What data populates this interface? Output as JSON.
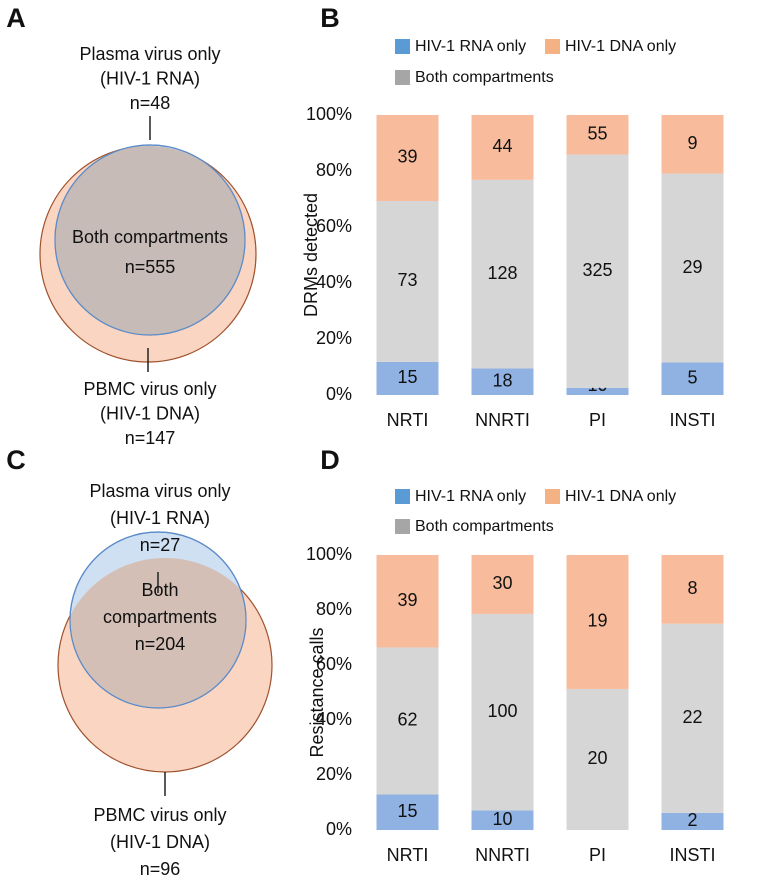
{
  "chart_data": [
    {
      "type": "venn",
      "panel": "A",
      "regions": [
        {
          "label": [
            "Plasma virus only",
            "(HIV-1 RNA)"
          ],
          "value": 48,
          "value_label": "n=48",
          "color": "#cfe0f3"
        },
        {
          "label": [
            "Both compartments"
          ],
          "value": 555,
          "value_label": "n=555",
          "color": "#c6bbb6"
        },
        {
          "label": [
            "PBMC virus only",
            "(HIV-1 DNA)"
          ],
          "value": 147,
          "value_label": "n=147",
          "color": "#f9d5c2"
        }
      ]
    },
    {
      "type": "bar",
      "panel": "B",
      "stacking": "percent",
      "ylabel": "DRMs detected",
      "categories": [
        "NRTI",
        "NNRTI",
        "PI",
        "INSTI"
      ],
      "series": [
        {
          "name": "HIV-1 RNA only",
          "color": "#8fb2e2",
          "legend_color": "#5b9bd5",
          "values": [
            15,
            18,
            10,
            5
          ]
        },
        {
          "name": "Both compartments",
          "color": "#d6d6d6",
          "legend_color": "#a6a6a6",
          "values": [
            73,
            128,
            325,
            29
          ]
        },
        {
          "name": "HIV-1 DNA only",
          "color": "#f8bc9c",
          "legend_color": "#f4b183",
          "values": [
            39,
            44,
            55,
            9
          ]
        }
      ],
      "ylim": [
        0,
        100
      ],
      "yticks": [
        {
          "value": 0,
          "label": "0%"
        },
        {
          "value": 20,
          "label": "20%"
        },
        {
          "value": 40,
          "label": "40%"
        },
        {
          "value": 60,
          "label": "60%"
        },
        {
          "value": 80,
          "label": "80%"
        },
        {
          "value": 100,
          "label": "100%"
        }
      ],
      "grid": false
    },
    {
      "type": "venn",
      "panel": "C",
      "regions": [
        {
          "label": [
            "Plasma virus only",
            "(HIV-1 RNA)"
          ],
          "value": 27,
          "value_label": "n=27",
          "color": "#cfe0f3"
        },
        {
          "label": [
            "Both",
            "compartments"
          ],
          "value": 204,
          "value_label": "n=204",
          "color": "#d3bfb6"
        },
        {
          "label": [
            "PBMC virus only",
            "(HIV-1 DNA)"
          ],
          "value": 96,
          "value_label": "n=96",
          "color": "#f9d5c2"
        }
      ]
    },
    {
      "type": "bar",
      "panel": "D",
      "stacking": "percent",
      "ylabel": "Resistance calls",
      "categories": [
        "NRTI",
        "NNRTI",
        "PI",
        "INSTI"
      ],
      "series": [
        {
          "name": "HIV-1 RNA only",
          "color": "#8fb2e2",
          "legend_color": "#5b9bd5",
          "values": [
            15,
            10,
            0,
            2
          ]
        },
        {
          "name": "Both compartments",
          "color": "#d6d6d6",
          "legend_color": "#a6a6a6",
          "values": [
            62,
            100,
            20,
            22
          ]
        },
        {
          "name": "HIV-1 DNA only",
          "color": "#f8bc9c",
          "legend_color": "#f4b183",
          "values": [
            39,
            30,
            19,
            8
          ]
        }
      ],
      "ylim": [
        0,
        100
      ],
      "yticks": [
        {
          "value": 0,
          "label": "0%"
        },
        {
          "value": 20,
          "label": "20%"
        },
        {
          "value": 40,
          "label": "40%"
        },
        {
          "value": 60,
          "label": "60%"
        },
        {
          "value": 80,
          "label": "80%"
        },
        {
          "value": 100,
          "label": "100%"
        }
      ],
      "grid": false
    }
  ]
}
